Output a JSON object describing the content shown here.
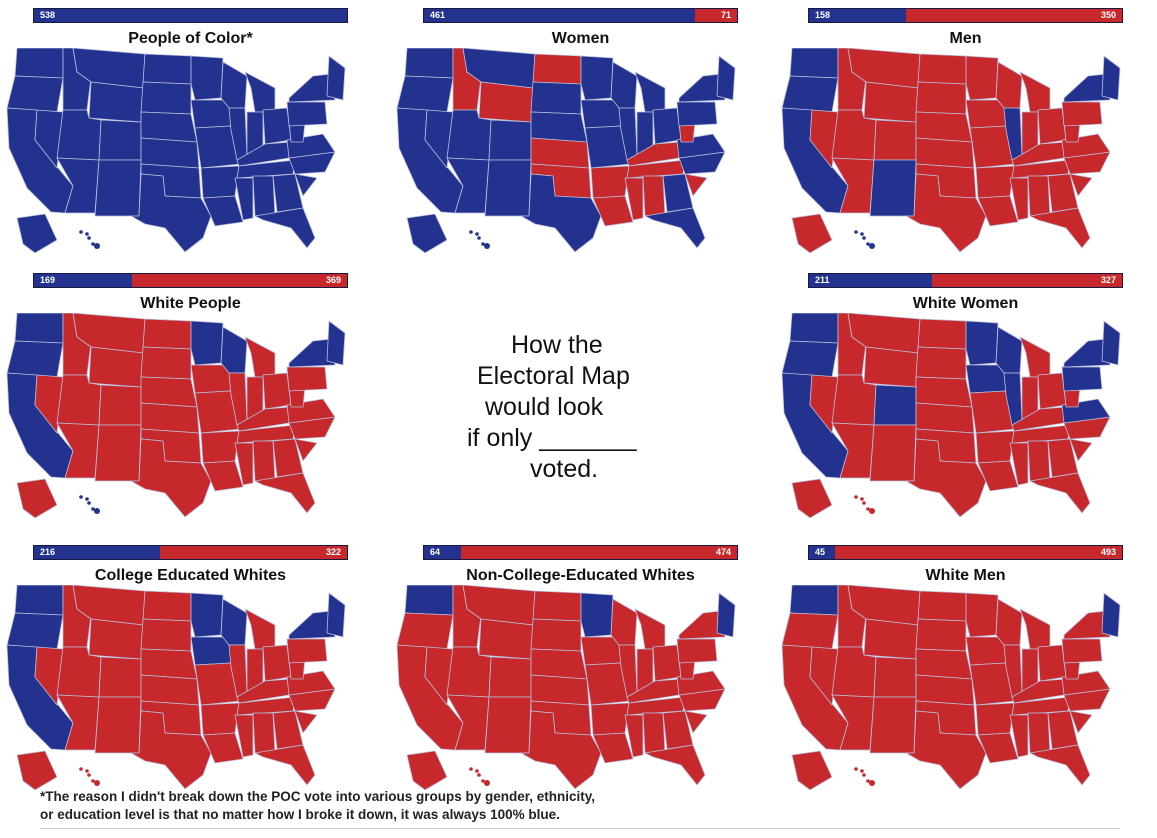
{
  "colors": {
    "dem": "#23328f",
    "rep": "#c6282c",
    "border": "#b9bfdc"
  },
  "panels": [
    {
      "title": "People of Color*",
      "blue": 538,
      "red": 0,
      "blue_label": "538",
      "red_label": "",
      "blue_states": [
        "WA",
        "OR",
        "CA",
        "NV",
        "ID",
        "MT",
        "WY",
        "UT",
        "AZ",
        "CO",
        "NM",
        "ND",
        "SD",
        "NE",
        "KS",
        "OK",
        "TX",
        "MN",
        "IA",
        "MO",
        "AR",
        "LA",
        "WI",
        "IL",
        "MI",
        "IN",
        "OH",
        "KY",
        "TN",
        "MS",
        "AL",
        "GA",
        "FL",
        "SC",
        "NC",
        "VA",
        "WV",
        "PA",
        "NY",
        "NE-ST",
        "AK",
        "HI"
      ]
    },
    {
      "title": "Women",
      "blue": 461,
      "red": 71,
      "blue_label": "461",
      "red_label": "71",
      "blue_states": [
        "WA",
        "OR",
        "CA",
        "NV",
        "MT",
        "UT",
        "CO",
        "AZ",
        "NM",
        "TX",
        "SD",
        "NE",
        "MN",
        "IA",
        "MO",
        "WI",
        "IL",
        "MI",
        "IN",
        "OH",
        "GA",
        "FL",
        "NC",
        "VA",
        "PA",
        "NY",
        "NE-ST",
        "AK",
        "HI"
      ]
    },
    {
      "title": "Men",
      "blue": 158,
      "red": 350,
      "blue_label": "158",
      "red_label": "350",
      "blue_states": [
        "WA",
        "OR",
        "CA",
        "NM",
        "IL",
        "NY",
        "NE-ST",
        "HI"
      ]
    },
    {
      "title": "White People",
      "blue": 169,
      "red": 369,
      "blue_label": "169",
      "red_label": "369",
      "blue_states": [
        "WA",
        "OR",
        "CA",
        "MN",
        "WI",
        "NY",
        "NE-ST",
        "HI"
      ]
    },
    {
      "title": "White Women",
      "blue": 211,
      "red": 327,
      "blue_label": "211",
      "red_label": "327",
      "blue_states": [
        "WA",
        "OR",
        "CA",
        "CO",
        "MN",
        "IA",
        "WI",
        "IL",
        "NY",
        "PA",
        "VA",
        "NE-ST"
      ]
    },
    {
      "title": "College Educated Whites",
      "blue": 216,
      "red": 322,
      "blue_label": "216",
      "red_label": "322",
      "blue_states": [
        "WA",
        "OR",
        "CA",
        "MN",
        "IA",
        "WI",
        "NY",
        "NE-ST"
      ]
    },
    {
      "title": "Non-College-Educated Whites",
      "blue": 64,
      "red": 474,
      "blue_label": "64",
      "red_label": "474",
      "blue_states": [
        "WA",
        "MN",
        "NE-ST"
      ]
    },
    {
      "title": "White Men",
      "blue": 45,
      "red": 493,
      "blue_label": "45",
      "red_label": "493",
      "blue_states": [
        "WA",
        "NE-ST"
      ]
    }
  ],
  "center_text": [
    "How the",
    "Electoral Map",
    "would look",
    "if only _______",
    "voted."
  ],
  "footnote": [
    "*The reason I didn't break down the POC vote into various groups by gender, ethnicity,",
    "or education level is that no matter how I broke it down, it was always 100% blue."
  ]
}
